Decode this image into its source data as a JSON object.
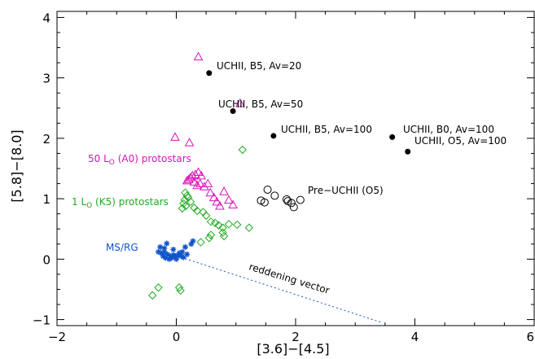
{
  "chart_data": {
    "type": "scatter",
    "xlabel": "[3.6]−[4.5]",
    "ylabel": "[5.8]−[8.0]",
    "xlim": [
      -2,
      6
    ],
    "ylim": [
      -1.1,
      4.1
    ],
    "x_ticks": [
      -2,
      0,
      2,
      4,
      6
    ],
    "y_ticks": [
      -1,
      0,
      1,
      2,
      3,
      4
    ],
    "x_tick_labels": [
      "−2",
      "0",
      "2",
      "4",
      "6"
    ],
    "y_tick_labels": [
      "−1",
      "0",
      "1",
      "2",
      "3",
      "4"
    ],
    "grid": false,
    "series": [
      {
        "color": "#dd11bb",
        "marker": "triangle-open",
        "points": [
          [
            0.37,
            3.35
          ],
          [
            1.07,
            2.58
          ],
          [
            -0.02,
            2.02
          ],
          [
            0.22,
            1.93
          ],
          [
            0.18,
            1.3
          ],
          [
            0.21,
            1.32
          ],
          [
            0.24,
            1.35
          ],
          [
            0.27,
            1.38
          ],
          [
            0.32,
            1.4
          ],
          [
            0.37,
            1.44
          ],
          [
            0.42,
            1.38
          ],
          [
            0.4,
            1.25
          ],
          [
            0.47,
            1.2
          ],
          [
            0.53,
            1.25
          ],
          [
            0.57,
            1.1
          ],
          [
            0.63,
            1.02
          ],
          [
            0.68,
            0.95
          ],
          [
            0.73,
            0.88
          ],
          [
            0.8,
            1.12
          ],
          [
            0.88,
            0.98
          ],
          [
            0.95,
            0.9
          ],
          [
            0.3,
            1.28
          ],
          [
            0.35,
            1.22
          ]
        ]
      },
      {
        "color": "#22aa22",
        "marker": "diamond-open",
        "points": [
          [
            1.11,
            1.81
          ],
          [
            0.15,
            1.1
          ],
          [
            0.18,
            1.05
          ],
          [
            0.2,
            1.02
          ],
          [
            0.14,
            0.98
          ],
          [
            0.12,
            0.92
          ],
          [
            0.16,
            0.88
          ],
          [
            0.1,
            0.84
          ],
          [
            0.24,
            0.95
          ],
          [
            0.3,
            0.85
          ],
          [
            0.35,
            0.8
          ],
          [
            0.45,
            0.78
          ],
          [
            0.5,
            0.72
          ],
          [
            0.58,
            0.62
          ],
          [
            0.65,
            0.6
          ],
          [
            0.71,
            0.56
          ],
          [
            0.78,
            0.52
          ],
          [
            0.88,
            0.58
          ],
          [
            1.02,
            0.57
          ],
          [
            1.22,
            0.52
          ],
          [
            0.58,
            0.4
          ],
          [
            0.55,
            0.35
          ],
          [
            0.41,
            0.28
          ],
          [
            0.78,
            0.44
          ],
          [
            0.8,
            0.38
          ],
          [
            -0.4,
            -0.6
          ],
          [
            -0.3,
            -0.47
          ],
          [
            0.05,
            -0.47
          ],
          [
            0.07,
            -0.52
          ]
        ]
      },
      {
        "color": "#1155cc",
        "marker": "asterisk",
        "points": [
          [
            -0.25,
            0.1
          ],
          [
            -0.22,
            0.05
          ],
          [
            -0.2,
            0.12
          ],
          [
            -0.18,
            0.02
          ],
          [
            -0.15,
            0.08
          ],
          [
            -0.12,
            0.0
          ],
          [
            -0.1,
            0.05
          ],
          [
            -0.08,
            0.02
          ],
          [
            -0.05,
            0.07
          ],
          [
            -0.02,
            0.04
          ],
          [
            0.0,
            0.0
          ],
          [
            0.02,
            0.06
          ],
          [
            0.05,
            0.1
          ],
          [
            0.08,
            0.05
          ],
          [
            0.1,
            0.12
          ],
          [
            0.12,
            0.03
          ],
          [
            -0.2,
            0.18
          ],
          [
            -0.27,
            0.2
          ],
          [
            -0.05,
            0.16
          ],
          [
            0.15,
            0.2
          ],
          [
            0.25,
            0.25
          ],
          [
            0.28,
            0.3
          ],
          [
            -0.3,
            0.12
          ],
          [
            0.18,
            0.08
          ],
          [
            -0.16,
            0.26
          ]
        ]
      },
      {
        "color": "#000000",
        "marker": "circle-open",
        "points": [
          [
            1.42,
            0.97
          ],
          [
            1.48,
            0.94
          ],
          [
            1.53,
            1.15
          ],
          [
            1.65,
            1.05
          ],
          [
            1.85,
            0.99
          ],
          [
            1.87,
            0.96
          ],
          [
            1.93,
            0.93
          ],
          [
            1.97,
            0.86
          ],
          [
            2.08,
            0.98
          ]
        ]
      },
      {
        "color": "#000000",
        "marker": "circle-filled",
        "points": [
          [
            0.55,
            3.08
          ],
          [
            0.95,
            2.45
          ],
          [
            1.63,
            2.04
          ],
          [
            3.62,
            2.02
          ],
          [
            3.88,
            1.78
          ]
        ]
      }
    ],
    "reddening_vector": {
      "from": [
        0.02,
        0.05
      ],
      "to": [
        3.45,
        -1.05
      ]
    },
    "annotations": {
      "uchii_b5_av20": "UCHII, B5, Av=20",
      "uchii_b5_av50": "UCHII, B5, Av=50",
      "uchii_b5_av100": "UCHII, B5, Av=100",
      "uchii_b0_av100": "UCHII, B0, Av=100",
      "uchii_o5_av100": "UCHII, O5, Av=100",
      "pre_uchii": "Pre−UCHII (O5)",
      "protostars_50": {
        "prefix": "50 L",
        "sub": "O",
        "suffix": " (A0) protostars"
      },
      "protostars_1": {
        "prefix": "1 L",
        "sub": "O",
        "suffix": " (K5) protostars"
      },
      "ms_rg": "MS/RG",
      "reddening": "reddening vector"
    }
  }
}
